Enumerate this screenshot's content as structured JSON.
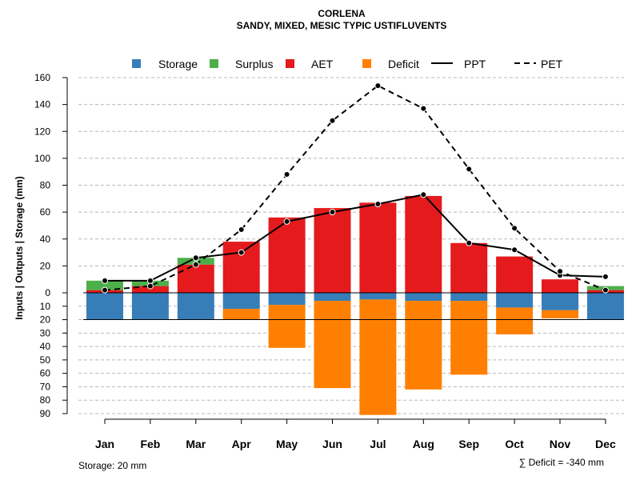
{
  "chart_data": {
    "type": "bar",
    "title": "CORLENA",
    "subtitle": "SANDY, MIXED, MESIC TYPIC USTIFLUVENTS",
    "ylabel": "Inputs | Outputs | Storage    (mm)",
    "upper_ylim": [
      0,
      160
    ],
    "upper_ticks": [
      0,
      20,
      40,
      60,
      80,
      100,
      120,
      140,
      160
    ],
    "lower_ylim": [
      0,
      90
    ],
    "lower_ticks": [
      10,
      20,
      30,
      40,
      50,
      60,
      70,
      80,
      90
    ],
    "categories": [
      "Jan",
      "Feb",
      "Mar",
      "Apr",
      "May",
      "Jun",
      "Jul",
      "Aug",
      "Sep",
      "Oct",
      "Nov",
      "Dec"
    ],
    "series": [
      {
        "name": "AET",
        "position": "upper",
        "values": [
          2,
          5,
          21,
          38,
          56,
          63,
          67,
          72,
          37,
          27,
          10,
          2
        ]
      },
      {
        "name": "Surplus",
        "position": "upper",
        "values": [
          7,
          4,
          5,
          0,
          0,
          0,
          0,
          0,
          0,
          0,
          0,
          3
        ]
      },
      {
        "name": "Storage",
        "position": "lower",
        "values": [
          20,
          20,
          20,
          12,
          9,
          6,
          5,
          6,
          6,
          11,
          13,
          20
        ]
      },
      {
        "name": "Deficit",
        "position": "lower",
        "values": [
          0,
          0,
          0,
          8,
          32,
          65,
          86,
          66,
          55,
          20,
          6,
          0
        ]
      },
      {
        "name": "PPT",
        "type": "line",
        "style": "solid",
        "values": [
          9,
          9,
          26,
          30,
          53,
          60,
          66,
          73,
          37,
          32,
          13,
          12
        ]
      },
      {
        "name": "PET",
        "type": "line",
        "style": "dashed",
        "values": [
          2,
          5,
          21,
          47,
          88,
          128,
          154,
          137,
          92,
          48,
          16,
          2
        ]
      }
    ],
    "colors": {
      "Storage": "#377eb8",
      "Surplus": "#4daf4a",
      "AET": "#e41a1c",
      "Deficit": "#ff7f00",
      "PPT": "#000000",
      "PET": "#000000"
    },
    "legend": {
      "placement": "top",
      "items": [
        "Storage",
        "Surplus",
        "AET",
        "Deficit",
        "PPT",
        "PET"
      ]
    },
    "storage_note": "Storage: 20 mm",
    "deficit_note": "∑ Deficit = -340 mm"
  }
}
